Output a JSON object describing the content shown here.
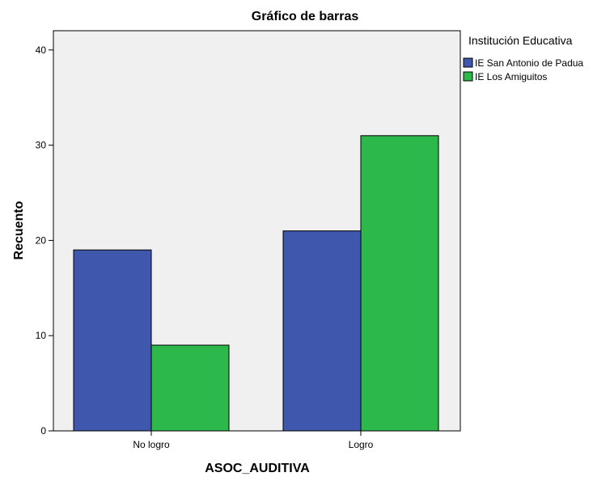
{
  "chart_data": {
    "type": "bar",
    "title": "Gráfico de barras",
    "xlabel": "ASOC_AUDITIVA",
    "ylabel": "Recuento",
    "categories": [
      "No logro",
      "Logro"
    ],
    "series": [
      {
        "name": "IE San Antonio de Padua",
        "values": [
          19,
          21
        ],
        "color": "#3f57ac"
      },
      {
        "name": "IE Los Amiguitos",
        "values": [
          9,
          31
        ],
        "color": "#2db84b"
      }
    ],
    "ylim": [
      0,
      42
    ],
    "yticks": [
      0,
      10,
      20,
      30,
      40
    ],
    "legend_title": "Institución Educativa",
    "legend_position": "right",
    "grid": false,
    "plot_background": "#f0f0f0"
  }
}
